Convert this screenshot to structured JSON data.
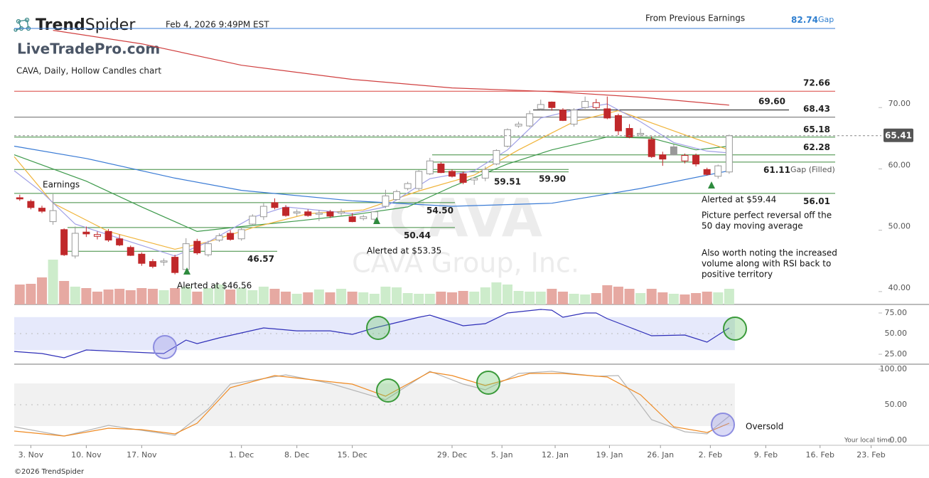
{
  "header": {
    "logo_bold": "Trend",
    "logo_light": "Spider",
    "timestamp": "Feb 4, 2026 9:49PM EST",
    "site": "LiveTradePro.com",
    "earnings_label": "From Previous Earnings",
    "gap_value": 82.74,
    "gap_suffix": "Gap",
    "watermark": "CAVA",
    "watermark_name": "CAVA Group, Inc.",
    "local_time": "Your local time",
    "copyright": "©2026 TrendSpider"
  },
  "annotations": {
    "earnings": "Earnings",
    "alert1": "Alerted at $46.56",
    "alert2": "Alerted at $53.35",
    "alert3": "Alerted at $59.44",
    "note1": [
      "Picture perfect reversal off the",
      "50 day moving average"
    ],
    "note2": [
      "Also worth noting the increased",
      "volume along with RSI back to",
      "positive territory"
    ],
    "oversold": "Oversold"
  },
  "chart_data": [
    {
      "type": "candlestick",
      "title": "CAVA, Daily, Hollow Candles chart",
      "xlim": [
        -0.5,
        78.5
      ],
      "ylim": [
        37.9,
        82.9
      ],
      "xticks": [
        {
          "value": 1,
          "label": "3. Nov"
        },
        {
          "value": 6,
          "label": "10. Nov"
        },
        {
          "value": 11,
          "label": "17. Nov"
        },
        {
          "value": 20,
          "label": "1. Dec"
        },
        {
          "value": 25,
          "label": "8. Dec"
        },
        {
          "value": 30,
          "label": "15. Dec"
        },
        {
          "value": 39,
          "label": "29. Dec"
        },
        {
          "value": 43.5,
          "label": "5. Jan"
        },
        {
          "value": 48.3,
          "label": "12. Jan"
        },
        {
          "value": 53.2,
          "label": "19. Jan"
        },
        {
          "value": 57.8,
          "label": "26. Jan"
        },
        {
          "value": 62.3,
          "label": "2. Feb"
        },
        {
          "value": 67.3,
          "label": "9. Feb"
        },
        {
          "value": 72.2,
          "label": "16. Feb"
        },
        {
          "value": 76.8,
          "label": "23. Feb"
        }
      ],
      "yticks": [
        {
          "value": 40,
          "label": "40.00"
        },
        {
          "value": 50,
          "label": "50.00"
        },
        {
          "value": 60,
          "label": "60.00"
        },
        {
          "value": 70,
          "label": "70.00"
        }
      ],
      "up_color": "#999999",
      "down_color": "#c0282a",
      "open": [
        55.3,
        54.7,
        53.6,
        51.4,
        50.1,
        45.8,
        49.7,
        49.0,
        49.8,
        48.6,
        47.2,
        46.1,
        44.9,
        44.8,
        45.6,
        43.6,
        48.2,
        46.0,
        48.4,
        49.5,
        48.6,
        51.0,
        52.2,
        54.5,
        53.7,
        52.8,
        53.0,
        52.6,
        53.0,
        52.8,
        52.2,
        51.9,
        51.8,
        53.9,
        55.0,
        56.8,
        56.8,
        59.2,
        60.8,
        59.6,
        59.2,
        58.2,
        58.5,
        60.8,
        63.7,
        67.0,
        67.0,
        69.8,
        70.9,
        69.6,
        67.3,
        70.0,
        70.0,
        69.8,
        68.7,
        66.6,
        65.6,
        64.8,
        62.3,
        63.6,
        61.3,
        62.2,
        59.9,
        58.8,
        59.5
      ],
      "high": [
        55.8,
        55.0,
        54.0,
        55.9,
        50.3,
        50.6,
        50.6,
        49.8,
        50.2,
        49.3,
        47.5,
        46.4,
        45.3,
        45.4,
        46.0,
        48.7,
        48.6,
        48.3,
        49.5,
        50.0,
        50.5,
        52.6,
        54.4,
        55.2,
        54.1,
        53.4,
        53.4,
        53.3,
        53.3,
        53.5,
        52.8,
        52.5,
        53.1,
        56.6,
        56.6,
        57.9,
        59.8,
        61.8,
        61.1,
        59.9,
        59.6,
        58.7,
        60.4,
        63.2,
        66.6,
        67.7,
        69.5,
        71.3,
        71.0,
        69.9,
        69.9,
        71.8,
        71.4,
        71.8,
        69.0,
        67.3,
        66.6,
        65.3,
        62.8,
        64.0,
        62.5,
        62.5,
        60.2,
        60.7,
        65.6
      ],
      "low": [
        54.8,
        53.4,
        52.8,
        50.9,
        45.8,
        45.4,
        48.9,
        48.5,
        48.1,
        47.4,
        45.8,
        44.2,
        43.8,
        44.2,
        42.8,
        43.2,
        46.0,
        45.7,
        48.1,
        48.3,
        48.3,
        50.8,
        51.7,
        53.4,
        52.2,
        52.3,
        52.2,
        51.5,
        52.0,
        52.4,
        51.3,
        51.6,
        51.4,
        53.6,
        54.9,
        56.5,
        56.5,
        59.0,
        59.3,
        58.6,
        57.5,
        57.4,
        58.0,
        60.6,
        63.5,
        66.7,
        66.8,
        69.6,
        69.5,
        67.8,
        66.9,
        69.8,
        69.7,
        68.1,
        65.5,
        65.0,
        65.3,
        61.8,
        60.5,
        62.2,
        60.9,
        60.4,
        58.9,
        58.4,
        59.2
      ],
      "close": [
        55.1,
        53.7,
        53.1,
        53.2,
        46.0,
        49.5,
        49.4,
        49.3,
        48.4,
        47.6,
        45.9,
        44.6,
        44.1,
        45.0,
        43.1,
        47.8,
        46.3,
        47.8,
        49.1,
        48.5,
        50.1,
        52.3,
        53.9,
        53.7,
        52.4,
        53.0,
        52.4,
        52.8,
        52.3,
        53.0,
        51.4,
        52.2,
        53.0,
        55.6,
        56.3,
        57.6,
        59.6,
        61.3,
        59.4,
        58.8,
        57.8,
        58.5,
        59.9,
        63.0,
        66.4,
        67.3,
        69.0,
        70.5,
        70.0,
        67.9,
        69.6,
        71.0,
        70.8,
        68.3,
        66.2,
        65.2,
        65.8,
        62.0,
        61.6,
        62.3,
        62.2,
        60.8,
        59.1,
        60.5,
        65.41
      ],
      "volume": {
        "ylim": [
          0,
          100
        ],
        "up_color": "#cdeccb",
        "down_color": "#e6a9a2",
        "values": [
          28,
          29,
          38,
          63,
          33,
          25,
          23,
          18,
          21,
          22,
          20,
          23,
          22,
          20,
          23,
          25,
          18,
          23,
          28,
          21,
          23,
          20,
          25,
          22,
          18,
          15,
          17,
          21,
          17,
          22,
          18,
          17,
          15,
          25,
          24,
          16,
          15,
          15,
          18,
          17,
          19,
          18,
          24,
          31,
          28,
          19,
          18,
          18,
          22,
          18,
          15,
          14,
          16,
          27,
          25,
          22,
          16,
          22,
          17,
          15,
          14,
          16,
          18,
          17,
          22
        ]
      },
      "moving_averages": [
        {
          "color": "#d04040",
          "x": [
            3,
            11,
            20,
            30,
            39,
            48,
            56,
            64
          ],
          "values": [
            82.6,
            80.4,
            76.9,
            74.6,
            73.2,
            72.6,
            71.7,
            70.4
          ]
        },
        {
          "color": "#3a7bd5",
          "x": [
            -0.5,
            6,
            14,
            20,
            30,
            39,
            48,
            56,
            64
          ],
          "values": [
            63.7,
            61.7,
            58.5,
            56.5,
            54.8,
            53.9,
            54.4,
            56.8,
            59.7
          ]
        },
        {
          "color": "#3e9a4c",
          "x": [
            -0.5,
            6,
            11,
            16,
            20,
            25,
            30,
            35,
            39,
            44,
            48,
            53,
            57,
            61,
            64
          ],
          "values": [
            62.3,
            58.0,
            53.8,
            49.8,
            50.6,
            51.5,
            52.5,
            53.8,
            57.1,
            60.8,
            63.1,
            65.2,
            65.0,
            63.1,
            63.7
          ]
        },
        {
          "color": "#f0b43a",
          "x": [
            -0.5,
            3,
            8,
            14,
            17,
            21,
            26,
            31,
            36,
            41,
            45,
            50,
            54,
            57,
            61,
            64
          ],
          "values": [
            62.0,
            54.4,
            49.8,
            46.9,
            48.1,
            50.4,
            52.7,
            53.3,
            56.4,
            59.0,
            63.1,
            67.7,
            69.5,
            67.5,
            64.9,
            63.1
          ]
        },
        {
          "color": "#a0a0e6",
          "x": [
            -0.5,
            2,
            5,
            10,
            14,
            17,
            21,
            24,
            30,
            33,
            37,
            41,
            44,
            47,
            51,
            53,
            56,
            59,
            62,
            64
          ],
          "values": [
            59.7,
            56.2,
            51.0,
            48.1,
            45.8,
            48.1,
            52.1,
            53.8,
            52.7,
            53.8,
            58.4,
            59.7,
            63.1,
            68.3,
            70.0,
            70.6,
            67.7,
            64.3,
            62.9,
            62.6
          ]
        }
      ],
      "levels": [
        {
          "value": 72.66,
          "color": "#d9423f"
        },
        {
          "value": 69.6,
          "label": "69.60",
          "color": "#111111"
        },
        {
          "value": 68.43,
          "color": "#666666"
        },
        {
          "value": 65.18,
          "color": "#3d8b3d"
        },
        {
          "value": 62.28,
          "color": "#3d8b3d"
        },
        {
          "value": 61.11,
          "note": "Gap (Filled)",
          "color": "#3d8b3d"
        },
        {
          "value": 59.9,
          "label": "59.90",
          "color": "#3d8b3d"
        },
        {
          "value": 59.51,
          "color": "#3d8b3d"
        },
        {
          "value": 56.01,
          "color": "#3d8b3d"
        },
        {
          "value": 54.5,
          "label": "54.50",
          "color": "#3d8b3d"
        },
        {
          "value": 50.44,
          "color": "#3d8b3d"
        },
        {
          "value": 46.57,
          "color": "#3d8b3d"
        }
      ]
    },
    {
      "type": "line",
      "xlim": [
        -0.5,
        78.5
      ],
      "ylim": [
        16.4,
        81.9
      ],
      "band": [
        30,
        70
      ],
      "band_color": "#e6e9fb",
      "yticks": [
        {
          "value": 25,
          "label": "25.00"
        },
        {
          "value": 50,
          "label": "50.00"
        },
        {
          "value": 75,
          "label": "75.00"
        }
      ],
      "series": [
        {
          "color": "#2f2fb8",
          "x": [
            -0.5,
            2,
            4,
            6,
            9,
            13,
            15,
            16,
            18,
            22,
            25,
            28,
            30,
            32,
            36,
            37,
            38,
            40,
            42,
            44,
            47,
            48,
            49,
            51,
            52,
            53,
            55,
            57,
            60,
            62,
            64
          ],
          "values": [
            28.4,
            25.9,
            20.7,
            30.2,
            28.4,
            25.9,
            42.2,
            37.9,
            44.8,
            56.9,
            53.4,
            53.4,
            49.1,
            56.9,
            69.8,
            72.4,
            68.1,
            59.5,
            62.1,
            75,
            79.3,
            78.4,
            69.8,
            75,
            75,
            68.1,
            57.8,
            47.4,
            48.3,
            39.7,
            56.9
          ]
        }
      ]
    },
    {
      "type": "line",
      "xlim": [
        -0.5,
        78.5
      ],
      "ylim": [
        -7,
        106
      ],
      "band": [
        20,
        80
      ],
      "band_color": "#f1f1f1",
      "yticks": [
        {
          "value": 0,
          "label": "0.00"
        },
        {
          "value": 50,
          "label": "50.00"
        },
        {
          "value": 100,
          "label": "100.00"
        }
      ],
      "series": [
        {
          "color": "#b5b5b5",
          "x": [
            -0.5,
            4,
            8,
            14,
            17,
            19,
            24,
            28,
            33,
            36,
            37,
            40,
            42,
            45,
            48,
            52,
            54,
            57,
            60,
            62,
            64
          ],
          "values": [
            19,
            6,
            21,
            7,
            44,
            79,
            92,
            80,
            57,
            87,
            97,
            79,
            71,
            94,
            97,
            90,
            91,
            29,
            12,
            9,
            34
          ]
        },
        {
          "color": "#ef8a22",
          "x": [
            -0.5,
            4,
            8,
            11,
            14,
            16,
            19,
            23,
            27,
            30,
            33,
            35,
            37,
            39,
            42,
            46,
            49,
            53,
            56,
            59,
            62,
            64
          ],
          "values": [
            13,
            6,
            17,
            15,
            9,
            24,
            74,
            91,
            84,
            79,
            62,
            79,
            96,
            91,
            77,
            94,
            94,
            89,
            64,
            19,
            11,
            24
          ]
        }
      ]
    }
  ]
}
